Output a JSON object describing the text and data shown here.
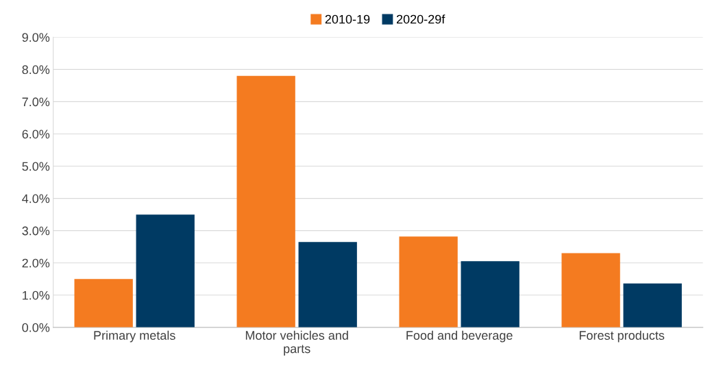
{
  "chart_data": {
    "type": "bar",
    "categories": [
      "Primary metals",
      "Motor vehicles and\nparts",
      "Food and beverage",
      "Forest products"
    ],
    "series": [
      {
        "name": "2010-19",
        "color": "#f47b20",
        "values": [
          1.5,
          7.8,
          2.82,
          2.3
        ]
      },
      {
        "name": "2020-29f",
        "color": "#003a63",
        "values": [
          3.5,
          2.65,
          2.05,
          1.36
        ]
      }
    ],
    "ylim": [
      0,
      9
    ],
    "yticks": [
      {
        "value": 0,
        "label": "0.0%"
      },
      {
        "value": 1,
        "label": "1.0%"
      },
      {
        "value": 2,
        "label": "2.0%"
      },
      {
        "value": 3,
        "label": "3.0%"
      },
      {
        "value": 4,
        "label": "4.0%"
      },
      {
        "value": 5,
        "label": "5.0%"
      },
      {
        "value": 6,
        "label": "6.0%"
      },
      {
        "value": 7,
        "label": "7.0%"
      },
      {
        "value": 8,
        "label": "8.0%"
      },
      {
        "value": 9,
        "label": "9.0%"
      }
    ],
    "grid": "y",
    "legend": "top"
  }
}
